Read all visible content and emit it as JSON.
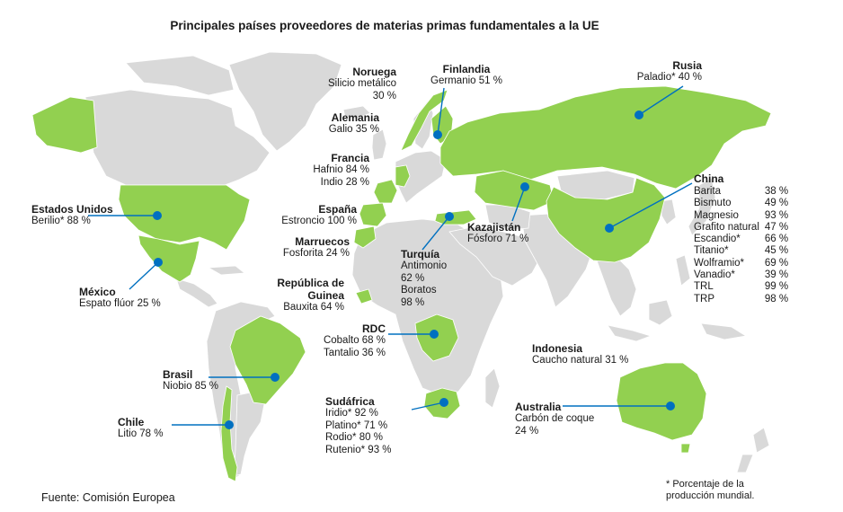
{
  "title": "Principales países proveedores de materias primas fundamentales a la UE",
  "source": "Fuente: Comisión Europea",
  "footnote": [
    "* Porcentaje de la",
    "producción mundial."
  ],
  "colors": {
    "supplier_fill": "#92d050",
    "other_land": "#d9d9d9",
    "border": "#ffffff",
    "marker": "#0070c0",
    "leader_line": "#0070c0"
  },
  "countries": [
    {
      "id": "usa",
      "name": "Estados Unidos",
      "materials": [
        {
          "text": "Berilio* 88 %"
        }
      ]
    },
    {
      "id": "mexico",
      "name": "México",
      "materials": [
        {
          "text": "Espato flúor 25 %"
        }
      ]
    },
    {
      "id": "brasil",
      "name": "Brasil",
      "materials": [
        {
          "text": "Niobio 85 %"
        }
      ]
    },
    {
      "id": "chile",
      "name": "Chile",
      "materials": [
        {
          "text": "Litio 78 %"
        }
      ]
    },
    {
      "id": "noruega",
      "name": "Noruega",
      "materials": [
        {
          "text": "Silicio metálico"
        },
        {
          "text": "30 %"
        }
      ]
    },
    {
      "id": "finlandia",
      "name": "Finlandia",
      "materials": [
        {
          "text": "Germanio 51 %"
        }
      ]
    },
    {
      "id": "alemania",
      "name": "Alemania",
      "materials": [
        {
          "text": "Galio 35 %"
        }
      ]
    },
    {
      "id": "francia",
      "name": "Francia",
      "materials": [
        {
          "text": "Hafnio 84 %"
        },
        {
          "text": "Indio 28 %"
        }
      ]
    },
    {
      "id": "espana",
      "name": "España",
      "materials": [
        {
          "text": "Estroncio 100 %"
        }
      ]
    },
    {
      "id": "marruecos",
      "name": "Marruecos",
      "materials": [
        {
          "text": "Fosforita 24 %"
        }
      ]
    },
    {
      "id": "guinea",
      "name": "República de Guinea",
      "name_lines": [
        "República de",
        "Guinea"
      ],
      "materials": [
        {
          "text": "Bauxita 64 %"
        }
      ]
    },
    {
      "id": "turquia",
      "name": "Turquía",
      "materials": [
        {
          "text": "Antimonio"
        },
        {
          "text": "62 %"
        },
        {
          "text": "Boratos"
        },
        {
          "text": "98 %"
        }
      ]
    },
    {
      "id": "kazajistan",
      "name": "Kazajistán",
      "materials": [
        {
          "text": "Fósforo 71 %"
        }
      ]
    },
    {
      "id": "rusia",
      "name": "Rusia",
      "materials": [
        {
          "text": "Paladio* 40 %"
        }
      ]
    },
    {
      "id": "rdc",
      "name": "RDC",
      "materials": [
        {
          "text": "Cobalto 68 %"
        },
        {
          "text": "Tantalio 36 %"
        }
      ]
    },
    {
      "id": "sudafrica",
      "name": "Sudáfrica",
      "materials": [
        {
          "text": "Iridio* 92 %"
        },
        {
          "text": "Platino* 71 %"
        },
        {
          "text": "Rodio* 80 %"
        },
        {
          "text": "Rutenio* 93 %"
        }
      ]
    },
    {
      "id": "indonesia",
      "name": "Indonesia",
      "materials": [
        {
          "text": "Caucho natural 31 %"
        }
      ]
    },
    {
      "id": "australia",
      "name": "Australia",
      "materials": [
        {
          "text": "Carbón de coque"
        },
        {
          "text": "24 %"
        }
      ]
    },
    {
      "id": "china",
      "name": "China",
      "materials": [
        {
          "name": "Barita",
          "value": "38 %"
        },
        {
          "name": "Bismuto",
          "value": "49 %"
        },
        {
          "name": "Magnesio",
          "value": "93 %"
        },
        {
          "name": "Grafito natural",
          "value": "47 %"
        },
        {
          "name": "Escandio*",
          "value": "66 %"
        },
        {
          "name": "Titanio*",
          "value": "45 %"
        },
        {
          "name": "Wolframio*",
          "value": "69 %"
        },
        {
          "name": "Vanadio*",
          "value": "39 %"
        },
        {
          "name": "TRL",
          "value": "99 %"
        },
        {
          "name": "TRP",
          "value": "98 %"
        }
      ]
    }
  ]
}
